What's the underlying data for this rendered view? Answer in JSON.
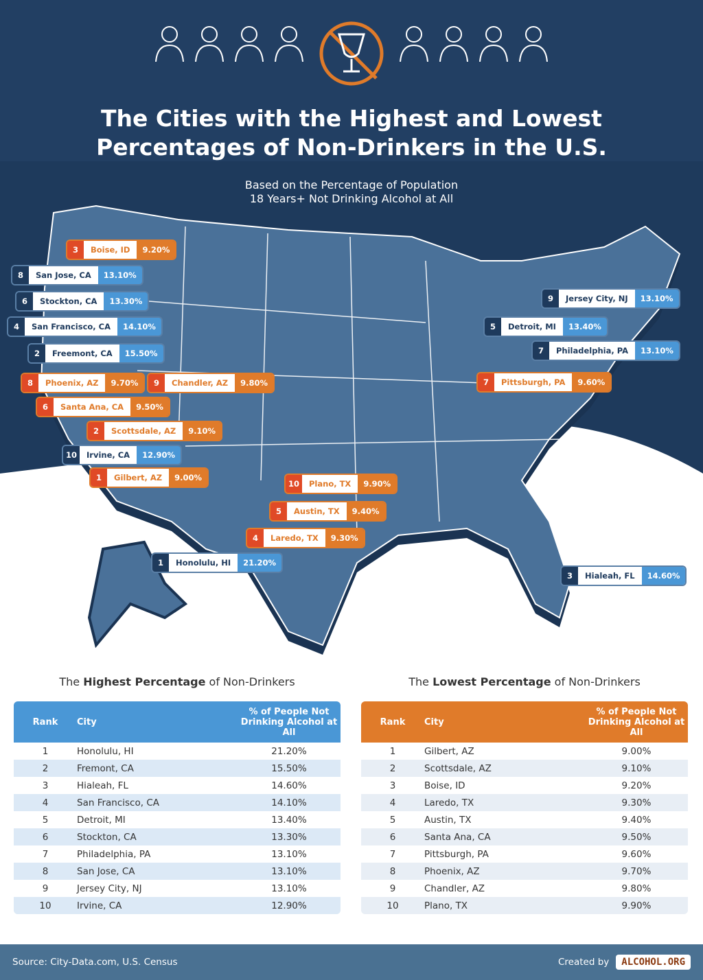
{
  "title_line1": "The Cities with the Highest and Lowest",
  "title_line2": "Percentages of Non-Drinkers in the U.S.",
  "subtitle_line1": "Based on the Percentage of Population",
  "subtitle_line2": "18 Years+ Not Drinking Alcohol at All",
  "colors": {
    "navy": "#1e3a5c",
    "map": "#4a7199",
    "blue": "#4a97d6",
    "orange": "#e07b2a",
    "red": "#e04a26"
  },
  "map_labels": {
    "high": [
      {
        "rank": "1",
        "city": "Honolulu, HI",
        "pct": "21.20%"
      },
      {
        "rank": "2",
        "city": "Freemont, CA",
        "pct": "15.50%"
      },
      {
        "rank": "3",
        "city": "Hialeah, FL",
        "pct": "14.60%"
      },
      {
        "rank": "4",
        "city": "San Francisco, CA",
        "pct": "14.10%"
      },
      {
        "rank": "5",
        "city": "Detroit, MI",
        "pct": "13.40%"
      },
      {
        "rank": "6",
        "city": "Stockton, CA",
        "pct": "13.30%"
      },
      {
        "rank": "7",
        "city": "Philadelphia, PA",
        "pct": "13.10%"
      },
      {
        "rank": "8",
        "city": "San Jose, CA",
        "pct": "13.10%"
      },
      {
        "rank": "9",
        "city": "Jersey City, NJ",
        "pct": "13.10%"
      },
      {
        "rank": "10",
        "city": "Irvine, CA",
        "pct": "12.90%"
      }
    ],
    "low": [
      {
        "rank": "1",
        "city": "Gilbert, AZ",
        "pct": "9.00%"
      },
      {
        "rank": "2",
        "city": "Scottsdale, AZ",
        "pct": "9.10%"
      },
      {
        "rank": "3",
        "city": "Boise, ID",
        "pct": "9.20%"
      },
      {
        "rank": "4",
        "city": "Laredo, TX",
        "pct": "9.30%"
      },
      {
        "rank": "5",
        "city": "Austin, TX",
        "pct": "9.40%"
      },
      {
        "rank": "6",
        "city": "Santa Ana, CA",
        "pct": "9.50%"
      },
      {
        "rank": "7",
        "city": "Pittsburgh, PA",
        "pct": "9.60%"
      },
      {
        "rank": "8",
        "city": "Phoenix, AZ",
        "pct": "9.70%"
      },
      {
        "rank": "9",
        "city": "Chandler, AZ",
        "pct": "9.80%"
      },
      {
        "rank": "10",
        "city": "Plano, TX",
        "pct": "9.90%"
      }
    ]
  },
  "tables": {
    "highest": {
      "title_pre": "The ",
      "title_bold": "Highest Percentage",
      "title_post": " of Non-Drinkers",
      "headers": [
        "Rank",
        "City",
        "% of People Not Drinking Alcohol at All"
      ],
      "rows": [
        [
          "1",
          "Honolulu, HI",
          "21.20%"
        ],
        [
          "2",
          "Fremont, CA",
          "15.50%"
        ],
        [
          "3",
          "Hialeah, FL",
          "14.60%"
        ],
        [
          "4",
          "San Francisco, CA",
          "14.10%"
        ],
        [
          "5",
          "Detroit, MI",
          "13.40%"
        ],
        [
          "6",
          "Stockton, CA",
          "13.30%"
        ],
        [
          "7",
          "Philadelphia, PA",
          "13.10%"
        ],
        [
          "8",
          "San Jose, CA",
          "13.10%"
        ],
        [
          "9",
          "Jersey City, NJ",
          "13.10%"
        ],
        [
          "10",
          "Irvine, CA",
          "12.90%"
        ]
      ]
    },
    "lowest": {
      "title_pre": "The ",
      "title_bold": "Lowest Percentage",
      "title_post": " of Non-Drinkers",
      "headers": [
        "Rank",
        "City",
        "% of People Not Drinking Alcohol at All"
      ],
      "rows": [
        [
          "1",
          "Gilbert, AZ",
          "9.00%"
        ],
        [
          "2",
          "Scottsdale, AZ",
          "9.10%"
        ],
        [
          "3",
          "Boise, ID",
          "9.20%"
        ],
        [
          "4",
          "Laredo, TX",
          "9.30%"
        ],
        [
          "5",
          "Austin, TX",
          "9.40%"
        ],
        [
          "6",
          "Santa Ana, CA",
          "9.50%"
        ],
        [
          "7",
          "Pittsburgh, PA",
          "9.60%"
        ],
        [
          "8",
          "Phoenix, AZ",
          "9.70%"
        ],
        [
          "9",
          "Chandler, AZ",
          "9.80%"
        ],
        [
          "10",
          "Plano, TX",
          "9.90%"
        ]
      ]
    }
  },
  "footer": {
    "source": "Source: City-Data.com, U.S. Census",
    "created_by": "Created by",
    "logo": "ALCOHOL.ORG"
  }
}
